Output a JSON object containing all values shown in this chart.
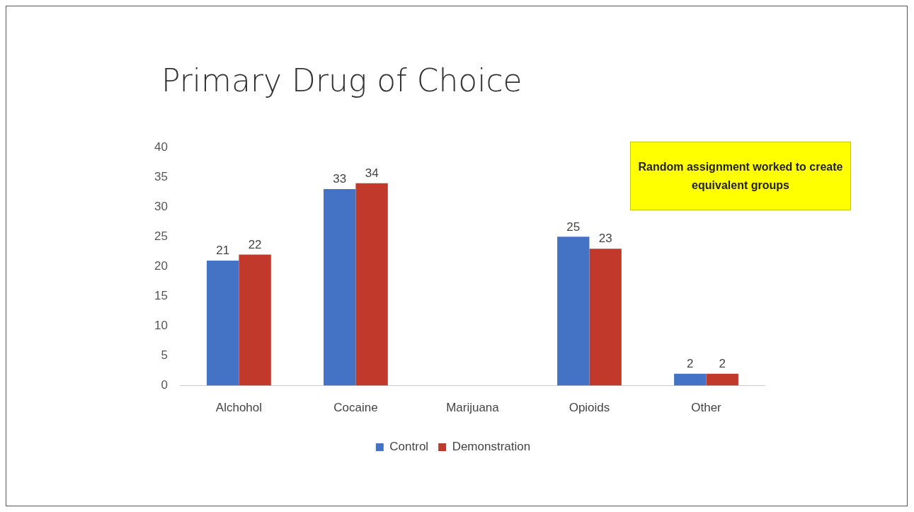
{
  "chart_data": {
    "type": "bar",
    "title": "Primary Drug of Choice",
    "categories": [
      "Alchohol",
      "Cocaine",
      "Marijuana",
      "Opioids",
      "Other"
    ],
    "series": [
      {
        "name": "Control",
        "color": "#4472c4",
        "values": [
          21,
          33,
          null,
          25,
          2
        ]
      },
      {
        "name": "Demonstration",
        "color": "#c0392b",
        "values": [
          22,
          34,
          null,
          23,
          2
        ]
      }
    ],
    "ylim": [
      0,
      40
    ],
    "yticks": [
      0,
      5,
      10,
      15,
      20,
      25,
      30,
      35,
      40
    ],
    "grid": false,
    "legend": "bottom",
    "data_labels": true,
    "annotations": [
      "Random assignment worked to create equivalent groups"
    ]
  }
}
